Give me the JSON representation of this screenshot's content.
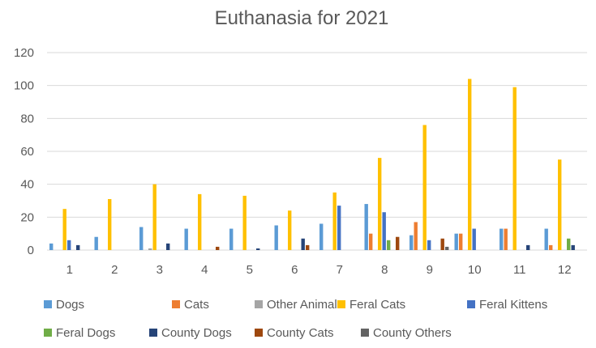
{
  "chart_data": {
    "type": "bar",
    "title": "Euthanasia for 2021",
    "xlabel": "",
    "ylabel": "",
    "ylim": [
      0,
      120
    ],
    "yticks": [
      0,
      20,
      40,
      60,
      80,
      100,
      120
    ],
    "grid": true,
    "legend_position": "bottom",
    "categories": [
      "1",
      "2",
      "3",
      "4",
      "5",
      "6",
      "7",
      "8",
      "9",
      "10",
      "11",
      "12"
    ],
    "series": [
      {
        "name": "Dogs",
        "color": "#5b9bd5",
        "values": [
          4,
          8,
          14,
          13,
          13,
          15,
          16,
          28,
          9,
          10,
          13,
          13
        ]
      },
      {
        "name": "Cats",
        "color": "#ed7d31",
        "values": [
          0,
          0,
          0,
          0,
          0,
          0,
          0,
          10,
          17,
          10,
          13,
          3
        ]
      },
      {
        "name": "Other Animal",
        "color": "#a5a5a5",
        "values": [
          0,
          0,
          1,
          0,
          0,
          0,
          0,
          0,
          0,
          0,
          0,
          0
        ]
      },
      {
        "name": "Feral Cats",
        "color": "#ffc000",
        "values": [
          25,
          31,
          40,
          34,
          33,
          24,
          35,
          56,
          76,
          104,
          99,
          55
        ]
      },
      {
        "name": "Feral Kittens",
        "color": "#4472c4",
        "values": [
          6,
          0,
          0,
          0,
          0,
          0,
          27,
          23,
          6,
          13,
          0,
          0
        ]
      },
      {
        "name": "Feral Dogs",
        "color": "#70ad47",
        "values": [
          0,
          0,
          0,
          0,
          0,
          0,
          0,
          6,
          0,
          0,
          0,
          7
        ]
      },
      {
        "name": "County Dogs",
        "color": "#264478",
        "values": [
          3,
          0,
          4,
          0,
          1,
          7,
          0,
          0,
          0,
          0,
          3,
          3
        ]
      },
      {
        "name": "County Cats",
        "color": "#9e480e",
        "values": [
          0,
          0,
          0,
          2,
          0,
          3,
          0,
          8,
          7,
          0,
          0,
          0
        ]
      },
      {
        "name": "County Others",
        "color": "#636363",
        "values": [
          0,
          0,
          0,
          0,
          0,
          0,
          0,
          0,
          2,
          0,
          0,
          0
        ]
      }
    ]
  }
}
